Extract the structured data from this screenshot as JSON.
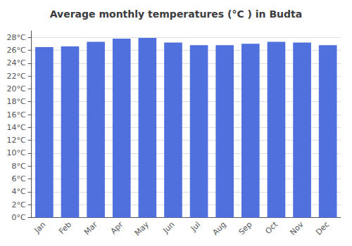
{
  "chart_data": {
    "type": "bar",
    "title": "Average monthly temperatures (°C ) in Budta",
    "categories": [
      "Jan",
      "Feb",
      "Mar",
      "Apr",
      "May",
      "Jun",
      "Jul",
      "Aug",
      "Sep",
      "Oct",
      "Nov",
      "Dec"
    ],
    "values": [
      26.5,
      26.6,
      27.3,
      27.8,
      27.9,
      27.2,
      26.8,
      26.8,
      27.0,
      27.3,
      27.2,
      26.8
    ],
    "ylim": [
      0,
      29
    ],
    "yticks": [
      {
        "value": 0,
        "label": "0°C"
      },
      {
        "value": 2,
        "label": "2°C"
      },
      {
        "value": 4,
        "label": "4°C"
      },
      {
        "value": 6,
        "label": "6°C"
      },
      {
        "value": 8,
        "label": "8°C"
      },
      {
        "value": 10,
        "label": "10°C"
      },
      {
        "value": 12,
        "label": "12°C"
      },
      {
        "value": 14,
        "label": "14°C"
      },
      {
        "value": 16,
        "label": "16°C"
      },
      {
        "value": 18,
        "label": "18°C"
      },
      {
        "value": 20,
        "label": "20°C"
      },
      {
        "value": 22,
        "label": "22°C"
      },
      {
        "value": 24,
        "label": "24°C"
      },
      {
        "value": 26,
        "label": "26°C"
      },
      {
        "value": 28,
        "label": "28°C"
      }
    ],
    "grid": true
  }
}
